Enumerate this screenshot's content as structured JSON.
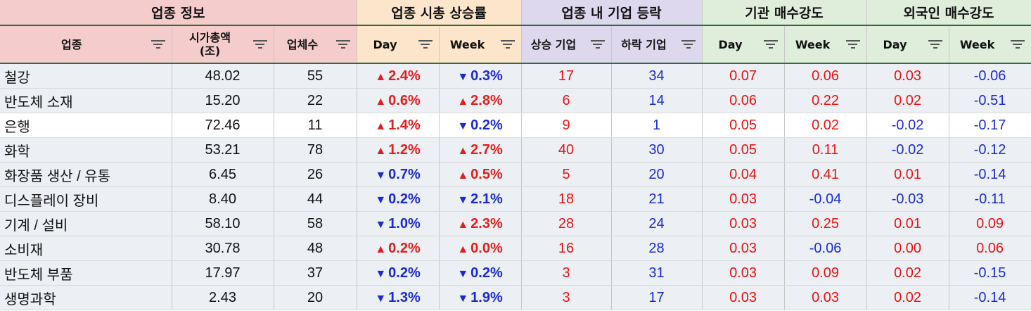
{
  "groups": {
    "info": "업종 정보",
    "cap": "업종 시총 상승률",
    "rise": "업종 내 기업 등락",
    "inst": "기관 매수강도",
    "foreign": "외국인 매수강도"
  },
  "columns": {
    "sector": "업종",
    "market_cap_line1": "시가총액",
    "market_cap_line2": "(조)",
    "companies": "업체수",
    "cap_day": "Day",
    "cap_week": "Week",
    "rising": "상승 기업",
    "falling": "하락 기업",
    "inst_day": "Day",
    "inst_week": "Week",
    "for_day": "Day",
    "for_week": "Week"
  },
  "colors": {
    "up": "#e51d1d",
    "down": "#1a2bd6",
    "header_info": "#f5cccc",
    "header_cap": "#fde5cc",
    "header_rise": "#ddd8ee",
    "header_flow": "#dfeedb"
  },
  "rows": [
    {
      "sector": "철강",
      "cap": "48.02",
      "count": "55",
      "day": "2.4%",
      "day_dir": "up",
      "week": "0.3%",
      "week_dir": "down",
      "rise": "17",
      "fall": "34",
      "inst_day": "0.07",
      "inst_week": "0.06",
      "for_day": "0.03",
      "for_week": "-0.06"
    },
    {
      "sector": "반도체 소재",
      "cap": "15.20",
      "count": "22",
      "day": "0.6%",
      "day_dir": "up",
      "week": "2.8%",
      "week_dir": "up",
      "rise": "6",
      "fall": "14",
      "inst_day": "0.06",
      "inst_week": "0.22",
      "for_day": "0.02",
      "for_week": "-0.51"
    },
    {
      "sector": "은행",
      "cap": "72.46",
      "count": "11",
      "day": "1.4%",
      "day_dir": "up",
      "week": "0.2%",
      "week_dir": "down",
      "rise": "9",
      "fall": "1",
      "inst_day": "0.05",
      "inst_week": "0.02",
      "for_day": "-0.02",
      "for_week": "-0.17"
    },
    {
      "sector": "화학",
      "cap": "53.21",
      "count": "78",
      "day": "1.2%",
      "day_dir": "up",
      "week": "2.7%",
      "week_dir": "up",
      "rise": "40",
      "fall": "30",
      "inst_day": "0.05",
      "inst_week": "0.11",
      "for_day": "-0.02",
      "for_week": "-0.12"
    },
    {
      "sector": "화장품 생산 / 유통",
      "cap": "6.45",
      "count": "26",
      "day": "0.7%",
      "day_dir": "down",
      "week": "0.5%",
      "week_dir": "up",
      "rise": "5",
      "fall": "20",
      "inst_day": "0.04",
      "inst_week": "0.41",
      "for_day": "0.01",
      "for_week": "-0.14"
    },
    {
      "sector": "디스플레이 장비",
      "cap": "8.40",
      "count": "44",
      "day": "0.2%",
      "day_dir": "down",
      "week": "2.1%",
      "week_dir": "down",
      "rise": "18",
      "fall": "21",
      "inst_day": "0.03",
      "inst_week": "-0.04",
      "for_day": "-0.03",
      "for_week": "-0.11"
    },
    {
      "sector": "기계 / 설비",
      "cap": "58.10",
      "count": "58",
      "day": "1.0%",
      "day_dir": "down",
      "week": "2.3%",
      "week_dir": "up",
      "rise": "28",
      "fall": "24",
      "inst_day": "0.03",
      "inst_week": "0.25",
      "for_day": "0.01",
      "for_week": "0.09"
    },
    {
      "sector": "소비재",
      "cap": "30.78",
      "count": "48",
      "day": "0.2%",
      "day_dir": "up",
      "week": "0.0%",
      "week_dir": "up",
      "rise": "16",
      "fall": "28",
      "inst_day": "0.03",
      "inst_week": "-0.06",
      "for_day": "0.00",
      "for_week": "0.06"
    },
    {
      "sector": "반도체 부품",
      "cap": "17.97",
      "count": "37",
      "day": "0.2%",
      "day_dir": "down",
      "week": "0.2%",
      "week_dir": "down",
      "rise": "3",
      "fall": "31",
      "inst_day": "0.03",
      "inst_week": "0.09",
      "for_day": "0.02",
      "for_week": "-0.15"
    },
    {
      "sector": "생명과학",
      "cap": "2.43",
      "count": "20",
      "day": "1.3%",
      "day_dir": "down",
      "week": "1.9%",
      "week_dir": "down",
      "rise": "3",
      "fall": "17",
      "inst_day": "0.03",
      "inst_week": "0.03",
      "for_day": "0.02",
      "for_week": "-0.14"
    }
  ]
}
